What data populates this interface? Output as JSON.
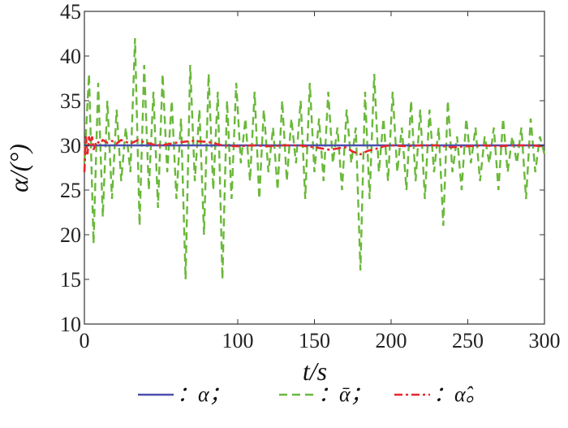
{
  "chart_data": {
    "type": "line",
    "xlabel": "t/s",
    "ylabel": "α/(°)",
    "xlim": [
      0,
      300
    ],
    "ylim": [
      10,
      45
    ],
    "x_ticks": [
      0,
      100,
      150,
      200,
      250,
      300
    ],
    "y_ticks": [
      10,
      15,
      20,
      25,
      30,
      35,
      40,
      45
    ],
    "grid": false,
    "legend_position": "bottom",
    "series": [
      {
        "name": "：α；",
        "color": "#4b4fb0",
        "style": "solid",
        "x": [
          0,
          300
        ],
        "y": [
          30,
          30
        ]
      },
      {
        "name": "：ᾱ；",
        "color": "#6ab83a",
        "style": "dashed",
        "x": [
          0,
          3,
          6,
          9,
          12,
          15,
          18,
          21,
          24,
          27,
          30,
          33,
          36,
          39,
          42,
          45,
          48,
          51,
          54,
          57,
          60,
          63,
          66,
          69,
          72,
          75,
          78,
          81,
          84,
          87,
          90,
          93,
          96,
          99,
          102,
          105,
          108,
          111,
          114,
          117,
          120,
          123,
          126,
          129,
          132,
          135,
          138,
          141,
          144,
          147,
          150,
          153,
          156,
          159,
          162,
          165,
          168,
          171,
          174,
          177,
          180,
          183,
          186,
          189,
          192,
          195,
          198,
          201,
          204,
          207,
          210,
          213,
          216,
          219,
          222,
          225,
          228,
          231,
          234,
          237,
          240,
          243,
          246,
          249,
          252,
          255,
          258,
          261,
          264,
          267,
          270,
          273,
          276,
          279,
          282,
          285,
          288,
          291,
          294,
          297,
          300
        ],
        "y": [
          28,
          38,
          19,
          37,
          22,
          35,
          24,
          34,
          26,
          32,
          27,
          42,
          21,
          39,
          25,
          36,
          23,
          38,
          27,
          35,
          24,
          33,
          15,
          39,
          26,
          34,
          20,
          38,
          25,
          36,
          15,
          35,
          24,
          37,
          28,
          33,
          26,
          36,
          24,
          34,
          27,
          32,
          25,
          35,
          26,
          33,
          28,
          35,
          24,
          37,
          27,
          33,
          26,
          36,
          28,
          32,
          25,
          34,
          28,
          32,
          16,
          36,
          24,
          38,
          27,
          33,
          26,
          36,
          27,
          32,
          25,
          35,
          26,
          34,
          24,
          34,
          27,
          32,
          21,
          35,
          27,
          31,
          25,
          33,
          28,
          32,
          26,
          31,
          28,
          32,
          25,
          33,
          27,
          31,
          28,
          32,
          24,
          33,
          27,
          31,
          29
        ]
      },
      {
        "name": "：α̂。",
        "color": "#e8262b",
        "style": "dashdot",
        "x": [
          0,
          1,
          2,
          3,
          4,
          5,
          6,
          8,
          10,
          12,
          15,
          18,
          21,
          24,
          27,
          30,
          35,
          40,
          45,
          50,
          60,
          70,
          80,
          90,
          100,
          110,
          120,
          130,
          140,
          150,
          160,
          170,
          175,
          180,
          185,
          190,
          195,
          200,
          210,
          220,
          230,
          240,
          250,
          260,
          270,
          280,
          290,
          300
        ],
        "y": [
          27,
          31,
          29,
          31,
          30,
          31,
          29.5,
          30.5,
          30.2,
          30.6,
          30.3,
          30.5,
          30.2,
          30.6,
          30.4,
          30.2,
          30.6,
          30.3,
          30.1,
          30.0,
          30.3,
          30.5,
          30.4,
          30.0,
          29.9,
          30.0,
          29.9,
          30.0,
          30.0,
          29.8,
          29.5,
          29.8,
          29.3,
          29.0,
          29.4,
          29.6,
          29.9,
          30.0,
          29.9,
          30.0,
          30.0,
          29.8,
          29.9,
          30.0,
          29.9,
          30.0,
          30.0,
          29.9
        ]
      }
    ]
  }
}
